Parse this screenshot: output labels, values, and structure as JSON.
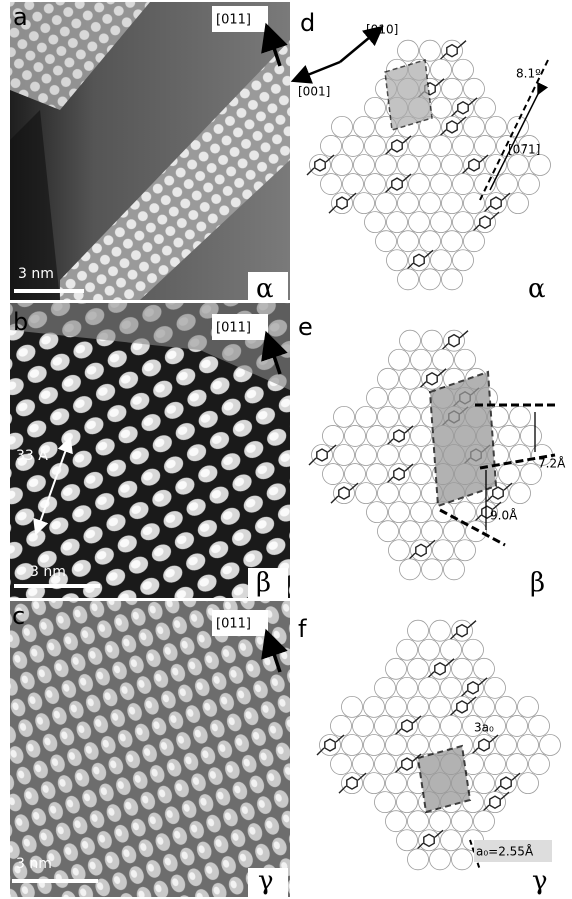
{
  "panels": [
    {
      "label": "a",
      "direction": "[011]",
      "scale": "3 nm",
      "phase": "α"
    },
    {
      "label": "b",
      "direction": "[011]",
      "scale": "3 nm",
      "phase": "β",
      "annotation": "33 Å"
    },
    {
      "label": "c",
      "direction": "[011]",
      "scale": "3 nm",
      "phase": "γ"
    }
  ],
  "diagrams": [
    {
      "label": "d",
      "phase": "α",
      "annotations": [
        "[010]",
        "[001]",
        "8.1º",
        "[07̄1]"
      ]
    },
    {
      "label": "e",
      "phase": "β",
      "annotations": [
        "7.2Å",
        "9.0Å"
      ]
    },
    {
      "label": "f",
      "phase": "γ",
      "annotations": [
        "3a₀",
        "a₀=2.55Å"
      ]
    }
  ]
}
